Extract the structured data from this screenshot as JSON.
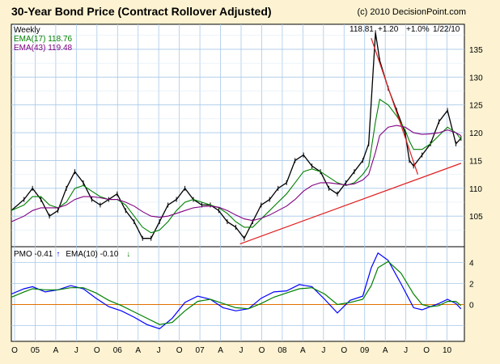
{
  "title": "30-Year Bond Price (Contract Rollover Adjusted)",
  "copyright": "(c) 2010 DecisionPoint.com",
  "chart_data": [
    {
      "type": "line",
      "panel": "price",
      "timeframe": "Weekly",
      "header_readout": {
        "last": "118.81",
        "change": "+1.20",
        "percent": "+1.0%",
        "date": "1/22/10"
      },
      "legend": [
        {
          "label": "EMA(17) 118.76",
          "color": "#008000"
        },
        {
          "label": "EMA(43) 119.48",
          "color": "#800080"
        }
      ],
      "y_ticks": [
        105,
        110,
        115,
        120,
        125,
        130,
        135
      ],
      "ylim": [
        99.5,
        139.5
      ],
      "x_ticks": [
        "O",
        "05",
        "A",
        "J",
        "O",
        "06",
        "A",
        "J",
        "O",
        "07",
        "A",
        "J",
        "O",
        "08",
        "A",
        "J",
        "O",
        "09",
        "A",
        "J",
        "O",
        "10"
      ],
      "x": [
        2004.75,
        2004.9,
        2005.0,
        2005.1,
        2005.2,
        2005.3,
        2005.4,
        2005.5,
        2005.6,
        2005.7,
        2005.8,
        2005.9,
        2006.0,
        2006.1,
        2006.2,
        2006.3,
        2006.4,
        2006.5,
        2006.6,
        2006.7,
        2006.8,
        2006.9,
        2007.0,
        2007.1,
        2007.2,
        2007.3,
        2007.4,
        2007.5,
        2007.6,
        2007.7,
        2007.8,
        2007.9,
        2008.0,
        2008.1,
        2008.2,
        2008.3,
        2008.4,
        2008.5,
        2008.6,
        2008.7,
        2008.8,
        2008.9,
        2008.97,
        2009.05,
        2009.1,
        2009.2,
        2009.3,
        2009.4,
        2009.45,
        2009.5,
        2009.6,
        2009.7,
        2009.8,
        2009.9,
        2010.0,
        2010.06
      ],
      "series": [
        {
          "name": "Weekly",
          "color": "#000000",
          "values": [
            106,
            108,
            110,
            108,
            105,
            106,
            110,
            113,
            111,
            108,
            107,
            108,
            109,
            106,
            104,
            101,
            101,
            104,
            107,
            108,
            110,
            108,
            107,
            107,
            106,
            104,
            103,
            101,
            104,
            107,
            108,
            110,
            111,
            115,
            116,
            114,
            113,
            110,
            109,
            111,
            113,
            115,
            118,
            138,
            133,
            128,
            124,
            120,
            115,
            114,
            116,
            118,
            122,
            124,
            118,
            119
          ]
        },
        {
          "name": "EMA(17)",
          "color": "#008000",
          "values": [
            106,
            107,
            108.5,
            108.5,
            107,
            106.5,
            107.5,
            110,
            110.5,
            109.5,
            108.5,
            108,
            108,
            107,
            105,
            103,
            102,
            102.5,
            104,
            106,
            107.5,
            108,
            107.5,
            107,
            106.5,
            105.5,
            104,
            103,
            103,
            104.5,
            106,
            107.5,
            109,
            111,
            113,
            113.5,
            113,
            112,
            111,
            110.5,
            111,
            112.5,
            114,
            122,
            126,
            125,
            123,
            120.5,
            118.5,
            117,
            117,
            118,
            119.5,
            121,
            120,
            118.8
          ]
        },
        {
          "name": "EMA(43)",
          "color": "#800080",
          "values": [
            104,
            105,
            106,
            106.5,
            106.5,
            106.5,
            107,
            108,
            108.5,
            108.5,
            108.3,
            108,
            108,
            107.5,
            106.8,
            105.8,
            105,
            104.8,
            105,
            105.5,
            106,
            106.5,
            106.7,
            106.8,
            106.6,
            106,
            105.2,
            104.5,
            104.2,
            104.6,
            105.2,
            106,
            106.8,
            108,
            109.5,
            110.5,
            111,
            111,
            110.8,
            110.6,
            110.8,
            111.5,
            112.5,
            116.5,
            119.5,
            121,
            121.3,
            121,
            120.5,
            120,
            119.7,
            119.8,
            120,
            120.5,
            120,
            119.48
          ]
        }
      ],
      "trendlines": [
        {
          "x": [
            2007.45,
            2010.06
          ],
          "y": [
            100,
            114.5
          ],
          "color": "#e02020"
        },
        {
          "x": [
            2009.0,
            2009.55
          ],
          "y": [
            137,
            112.5
          ],
          "color": "#e02020"
        }
      ]
    },
    {
      "type": "line",
      "panel": "indicator",
      "legend": [
        {
          "label": "PMO",
          "value": "-0.41",
          "arrow": "↑",
          "color": "#0000ff"
        },
        {
          "label": "EMA(10)",
          "value": "-0.10",
          "arrow": "↓",
          "color": "#008000"
        }
      ],
      "y_ticks": [
        0,
        2,
        4
      ],
      "ylim": [
        -3.5,
        5.5
      ],
      "zero_line_color": "#e07000",
      "x": [
        2004.75,
        2004.9,
        2005.0,
        2005.15,
        2005.3,
        2005.45,
        2005.6,
        2005.75,
        2005.9,
        2006.05,
        2006.2,
        2006.35,
        2006.5,
        2006.65,
        2006.8,
        2006.95,
        2007.1,
        2007.25,
        2007.4,
        2007.55,
        2007.7,
        2007.85,
        2008.0,
        2008.15,
        2008.3,
        2008.45,
        2008.6,
        2008.75,
        2008.9,
        2009.0,
        2009.08,
        2009.2,
        2009.35,
        2009.5,
        2009.6,
        2009.7,
        2009.8,
        2009.9,
        2010.0,
        2010.06
      ],
      "series": [
        {
          "name": "PMO",
          "color": "#0000ff",
          "values": [
            1.0,
            1.5,
            1.7,
            1.2,
            1.4,
            1.8,
            1.5,
            0.6,
            -0.2,
            -0.6,
            -1.2,
            -1.9,
            -2.3,
            -1.3,
            0.2,
            0.8,
            0.5,
            -0.3,
            -0.6,
            -0.4,
            0.6,
            1.2,
            1.3,
            1.9,
            1.7,
            0.5,
            -0.8,
            0.4,
            0.8,
            3.5,
            4.9,
            4.2,
            2.0,
            -0.3,
            -0.5,
            -0.2,
            0.1,
            0.5,
            0.1,
            -0.41
          ]
        },
        {
          "name": "EMA(10)",
          "color": "#008000",
          "values": [
            0.7,
            1.2,
            1.5,
            1.4,
            1.4,
            1.6,
            1.6,
            1.1,
            0.4,
            -0.1,
            -0.7,
            -1.3,
            -1.9,
            -1.7,
            -0.6,
            0.3,
            0.5,
            0.1,
            -0.3,
            -0.4,
            0.1,
            0.7,
            1.1,
            1.5,
            1.6,
            1.0,
            0.0,
            0.2,
            0.5,
            1.8,
            3.5,
            4.1,
            3.0,
            1.0,
            0.0,
            -0.2,
            -0.1,
            0.3,
            0.3,
            -0.1
          ]
        }
      ]
    }
  ]
}
